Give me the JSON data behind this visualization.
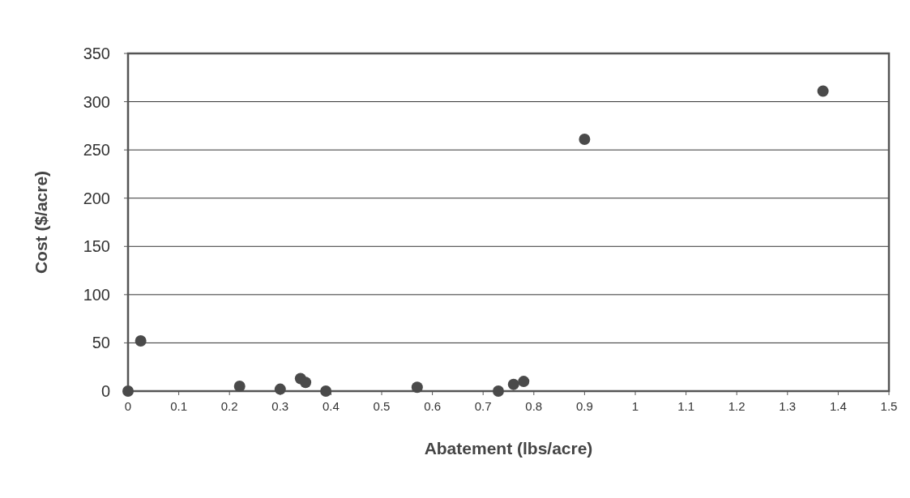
{
  "chart_data": {
    "type": "scatter",
    "xlabel": "Abatement (lbs/acre)",
    "ylabel": "Cost ($/acre)",
    "x": [
      0,
      0.025,
      0.22,
      0.3,
      0.34,
      0.35,
      0.39,
      0.57,
      0.73,
      0.76,
      0.78,
      0.9,
      1.37
    ],
    "series": [
      {
        "color": "#4a4a4a",
        "values": [
          0,
          52,
          5,
          2,
          13,
          9,
          0,
          4,
          0,
          7,
          10,
          261,
          311
        ]
      }
    ],
    "xlim": [
      0,
      1.5
    ],
    "xticks": [
      0,
      0.1,
      0.2,
      0.3,
      0.4,
      0.5,
      0.6,
      0.7,
      0.8,
      0.9,
      1,
      1.1,
      1.2,
      1.3,
      1.4,
      1.5
    ],
    "ylim": [
      0,
      350
    ],
    "yticks": [
      0,
      50,
      100,
      150,
      200,
      250,
      300,
      350
    ],
    "grid": "y",
    "marker": "circle"
  }
}
